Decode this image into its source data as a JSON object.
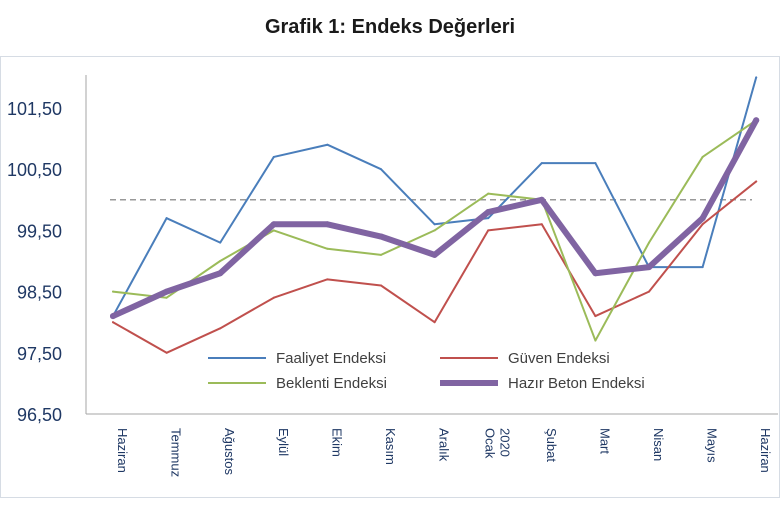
{
  "chart_data": {
    "type": "line",
    "title": "Grafik 1: Endeks Değerleri",
    "xlabel": "",
    "ylabel": "",
    "ylim": [
      96.5,
      102.0
    ],
    "yticks": [
      "96,50",
      "97,50",
      "98,50",
      "99,50",
      "100,50",
      "101,50"
    ],
    "ytick_values": [
      96.5,
      97.5,
      98.5,
      99.5,
      100.5,
      101.5
    ],
    "categories": [
      "Haziran",
      "Temmuz",
      "Ağustos",
      "Eylül",
      "Ekim",
      "Kasım",
      "Aralık",
      "Ocak 2020",
      "Şubat",
      "Mart",
      "Nisan",
      "Mayıs",
      "Haziran"
    ],
    "category_lines": [
      [
        "Haziran"
      ],
      [
        "Temmuz"
      ],
      [
        "Ağustos"
      ],
      [
        "Eylül"
      ],
      [
        "Ekim"
      ],
      [
        "Kasım"
      ],
      [
        "Aralık"
      ],
      [
        "Ocak",
        "2020"
      ],
      [
        "Şubat"
      ],
      [
        "Mart"
      ],
      [
        "Nisan"
      ],
      [
        "Mayıs"
      ],
      [
        "Haziran"
      ]
    ],
    "reference_line": 100,
    "legend_position": "bottom-center",
    "grid": false,
    "series": [
      {
        "name": "Faaliyet Endeksi",
        "color": "#4a7ebb",
        "width": 2,
        "values": [
          98.1,
          99.7,
          99.3,
          100.7,
          100.9,
          100.5,
          99.6,
          99.7,
          100.6,
          100.6,
          98.9,
          98.9,
          102.0
        ]
      },
      {
        "name": "Güven Endeksi",
        "color": "#c0504d",
        "width": 2,
        "values": [
          98.0,
          97.5,
          97.9,
          98.4,
          98.7,
          98.6,
          98.0,
          99.5,
          99.6,
          98.1,
          98.5,
          99.6,
          100.3
        ]
      },
      {
        "name": "Beklenti Endeksi",
        "color": "#9bbb59",
        "width": 2,
        "values": [
          98.5,
          98.4,
          99.0,
          99.5,
          99.2,
          99.1,
          99.5,
          100.1,
          100.0,
          97.7,
          99.3,
          100.7,
          101.3
        ]
      },
      {
        "name": "Hazır Beton Endeksi",
        "color": "#8064a2",
        "width": 6,
        "values": [
          98.1,
          98.5,
          98.8,
          99.6,
          99.6,
          99.4,
          99.1,
          99.8,
          100.0,
          98.8,
          98.9,
          99.7,
          101.3
        ]
      }
    ]
  }
}
